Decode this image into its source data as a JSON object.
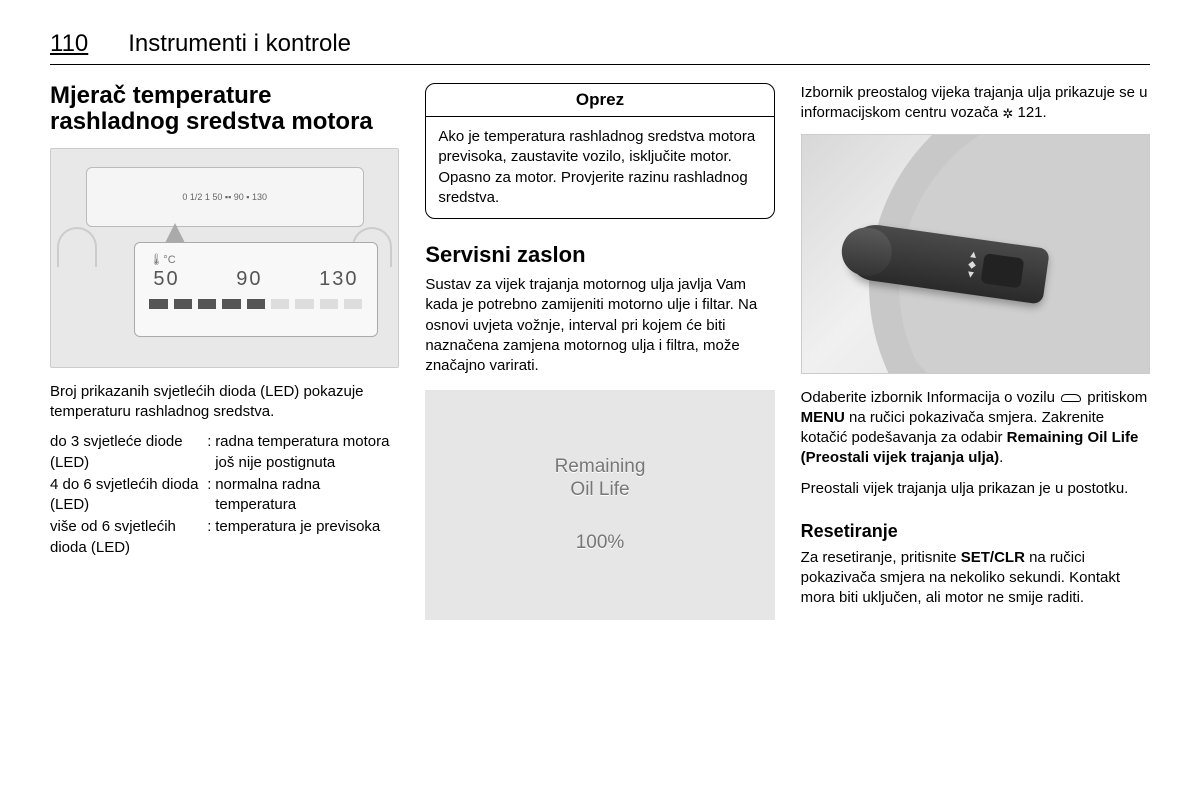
{
  "header": {
    "page_number": "110",
    "chapter": "Instrumenti i kontrole"
  },
  "col1": {
    "title": "Mjerač temperature rashladnog sredstva motora",
    "gauge": {
      "top_small": "0   1/2   1    50 ▪▪ 90 ▪  130",
      "icon_label": "🌡°C",
      "numbers": [
        "50",
        "90",
        "130"
      ]
    },
    "para": "Broj prikazanih svjetlećih dioda (LED) pokazuje temperaturu rashladnog sredstva.",
    "defs": [
      {
        "term": "do 3 svjetleće diode (LED)",
        "desc": "radna temperatura motora još nije postignuta"
      },
      {
        "term": "4 do 6 svjetlećih dioda (LED)",
        "desc": "normalna radna temperatura"
      },
      {
        "term": "više od 6 svjetlećih dioda (LED)",
        "desc": "temperatura je previsoka"
      }
    ]
  },
  "col2": {
    "caution_title": "Oprez",
    "caution_body": "Ako je temperatura rashladnog sredstva motora previsoka, zaustavite vozilo, isključite motor. Opasno za motor. Provjerite razinu rashladnog sredstva.",
    "section_title": "Servisni zaslon",
    "para": "Sustav za vijek trajanja motornog ulja javlja Vam kada je potrebno zamijeniti motorno ulje i filtar. Na osnovi uvjeta vožnje, interval pri kojem će biti naznačena zamjena motornog ulja i filtra, može značajno varirati.",
    "display_line1": "Remaining",
    "display_line2": "Oil Life",
    "display_value": "100%"
  },
  "col3": {
    "intro_a": "Izbornik preostalog vijeka trajanja ulja prikazuje se u informacijskom centru vozača ",
    "intro_ref": "121.",
    "para2_a": "Odaberite izbornik Informacija o vozilu ",
    "para2_b": " pritiskom ",
    "menu": "MENU",
    "para2_c": " na ručici pokazivača smjera. Zakrenite kotačić podešavanja za odabir ",
    "bold_opt": "Remaining Oil Life (Preostali vijek trajanja ulja)",
    "para2_d": ".",
    "para3": "Preostali vijek trajanja ulja prikazan je u postotku.",
    "sub_title": "Resetiranje",
    "para4_a": "Za resetiranje, pritisnite ",
    "setclr": "SET/CLR",
    "para4_b": " na ručici pokazivača smjera na nekoliko sekundi. Kontakt mora biti uključen, ali motor ne smije raditi."
  }
}
